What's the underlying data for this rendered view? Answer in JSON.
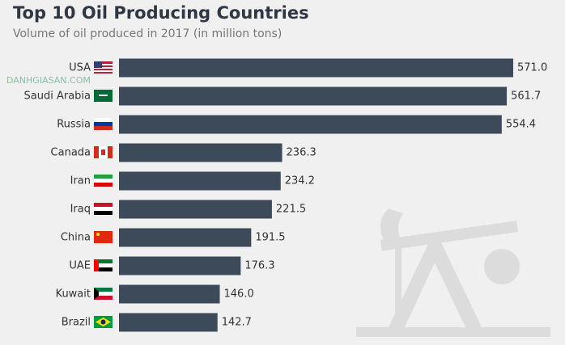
{
  "chart_data": {
    "type": "bar",
    "orientation": "horizontal",
    "title": "Top 10 Oil Producing Countries",
    "subtitle": "Volume of oil produced in 2017 (in million tons)",
    "watermark": "DANHGIASAN.COM",
    "categories": [
      "USA",
      "Saudi Arabia",
      "Russia",
      "Canada",
      "Iran",
      "Iraq",
      "China",
      "UAE",
      "Kuwait",
      "Brazil"
    ],
    "values": [
      571.0,
      561.7,
      554.4,
      236.3,
      234.2,
      221.5,
      191.5,
      176.3,
      146.0,
      142.7
    ],
    "value_labels": [
      "571.0",
      "561.7",
      "554.4",
      "236.3",
      "234.2",
      "221.5",
      "191.5",
      "176.3",
      "146.0",
      "142.7"
    ],
    "color": "#3d4a5a"
  }
}
